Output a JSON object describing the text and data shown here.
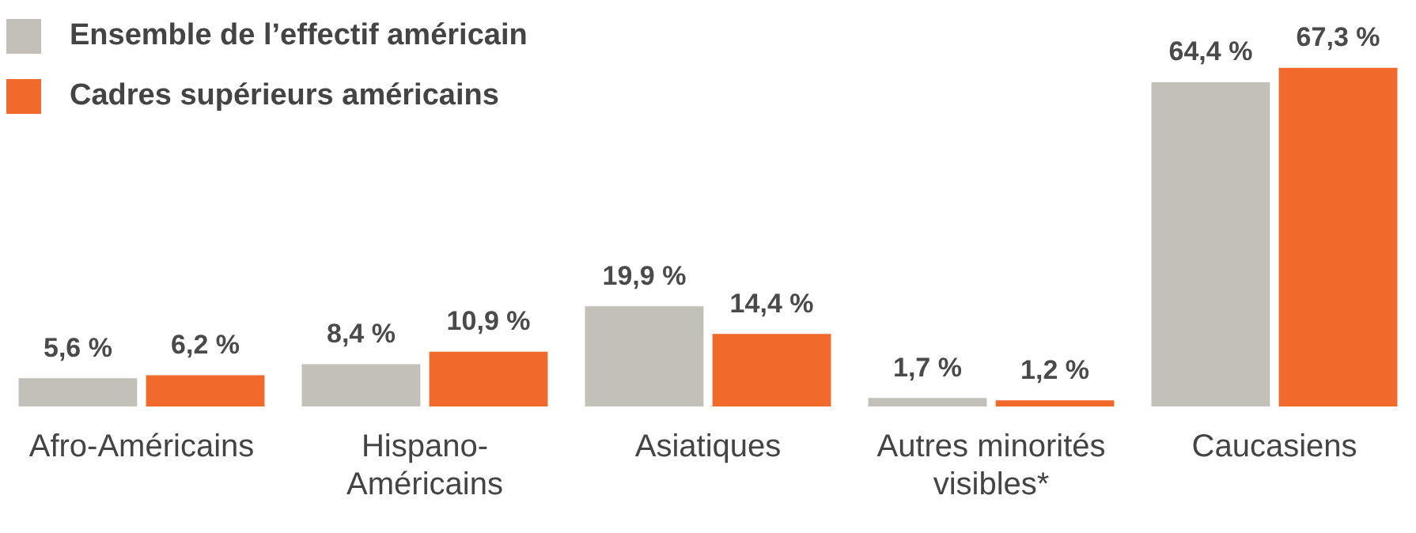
{
  "chart_data": {
    "type": "bar",
    "categories": [
      "Afro-Américains",
      "Hispano-Américains",
      "Asiatiques",
      "Autres minorités visibles*",
      "Caucasiens"
    ],
    "series": [
      {
        "name": "Ensemble de l’effectif américain",
        "color": "#c3c0ba",
        "values": [
          5.6,
          8.4,
          19.9,
          1.7,
          64.4
        ],
        "value_labels": [
          "5,6 %",
          "8,4 %",
          "19,9 %",
          "1,7 %",
          "64,4 %"
        ]
      },
      {
        "name": "Cadres supérieurs américains",
        "color": "#f2692c",
        "values": [
          6.2,
          10.9,
          14.4,
          1.2,
          67.3
        ],
        "value_labels": [
          "6,2 %",
          "10,9 %",
          "14,4 %",
          "1,2 %",
          "67,3 %"
        ]
      }
    ],
    "legend": "top left",
    "grid": false
  }
}
